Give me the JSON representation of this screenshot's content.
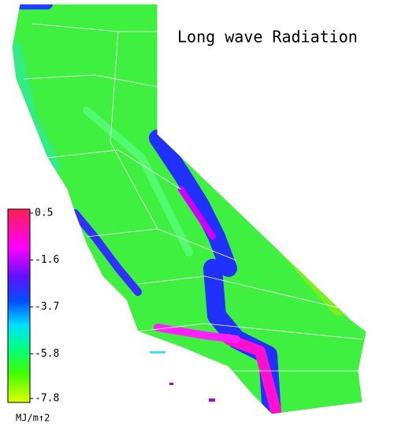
{
  "title": "Long wave Radiation",
  "colorbar": {
    "range": [
      -7.8,
      0.5
    ],
    "ticks": [
      0.5,
      -1.6,
      -3.7,
      -5.8,
      -7.8
    ],
    "unit": "MJ/m↑2"
  }
}
